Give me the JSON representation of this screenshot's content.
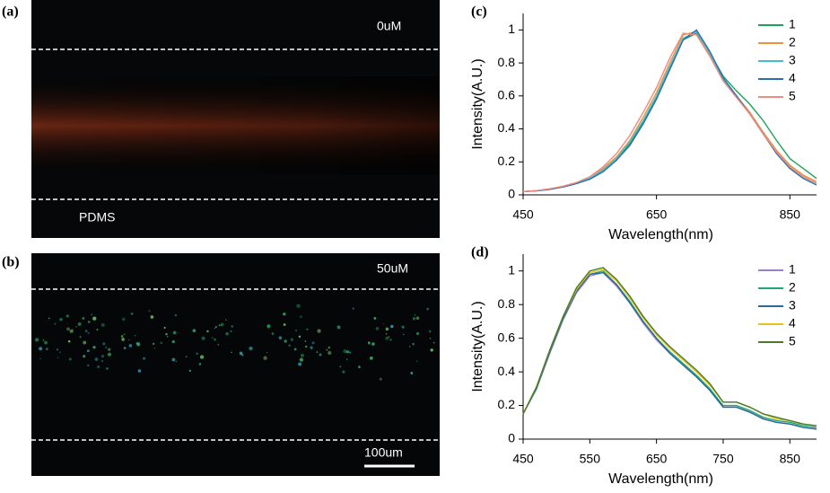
{
  "images": [
    {
      "panel": "(a)",
      "concentration": "0uM",
      "material": "PDMS"
    },
    {
      "panel": "(b)",
      "concentration": "50uM",
      "scale_bar": "100um"
    }
  ],
  "chart_data": [
    {
      "type": "line",
      "panel": "(c)",
      "x_label": "Wavelength(nm)",
      "y_label": "Intensity(A.U.)",
      "x": [
        450,
        470,
        490,
        510,
        530,
        550,
        570,
        590,
        610,
        630,
        650,
        670,
        690,
        710,
        730,
        750,
        770,
        790,
        810,
        830,
        850,
        870,
        890
      ],
      "xlim": [
        450,
        890
      ],
      "xticks": [
        450,
        650,
        850
      ],
      "ylim": [
        0,
        1.1
      ],
      "yticks": [
        0,
        0.2,
        0.4,
        0.6,
        0.8,
        1
      ],
      "series": [
        {
          "name": "1",
          "color": "#1aa35a",
          "values": [
            0.02,
            0.025,
            0.035,
            0.05,
            0.07,
            0.1,
            0.15,
            0.21,
            0.31,
            0.44,
            0.59,
            0.77,
            0.94,
            0.98,
            0.86,
            0.72,
            0.63,
            0.55,
            0.45,
            0.33,
            0.22,
            0.16,
            0.1
          ]
        },
        {
          "name": "2",
          "color": "#f0903a",
          "values": [
            0.02,
            0.025,
            0.035,
            0.05,
            0.07,
            0.1,
            0.16,
            0.23,
            0.33,
            0.47,
            0.62,
            0.8,
            0.97,
            0.99,
            0.85,
            0.7,
            0.6,
            0.5,
            0.38,
            0.27,
            0.18,
            0.12,
            0.08
          ]
        },
        {
          "name": "3",
          "color": "#3fbfcf",
          "values": [
            0.02,
            0.025,
            0.035,
            0.05,
            0.07,
            0.1,
            0.15,
            0.22,
            0.32,
            0.45,
            0.6,
            0.78,
            0.95,
            0.99,
            0.86,
            0.7,
            0.6,
            0.49,
            0.37,
            0.26,
            0.17,
            0.11,
            0.07
          ]
        },
        {
          "name": "4",
          "color": "#2e6fb0",
          "values": [
            0.02,
            0.024,
            0.033,
            0.048,
            0.068,
            0.095,
            0.14,
            0.21,
            0.3,
            0.43,
            0.58,
            0.76,
            0.94,
            1.0,
            0.87,
            0.71,
            0.6,
            0.49,
            0.37,
            0.25,
            0.16,
            0.1,
            0.06
          ]
        },
        {
          "name": "5",
          "color": "#f08a80",
          "values": [
            0.02,
            0.026,
            0.037,
            0.053,
            0.075,
            0.11,
            0.17,
            0.25,
            0.36,
            0.5,
            0.65,
            0.83,
            0.98,
            0.97,
            0.84,
            0.69,
            0.59,
            0.49,
            0.37,
            0.26,
            0.17,
            0.11,
            0.07
          ]
        }
      ]
    },
    {
      "type": "line",
      "panel": "(d)",
      "x_label": "Wavelength(nm)",
      "y_label": "Intensity(A.U.)",
      "x": [
        450,
        470,
        490,
        510,
        530,
        550,
        570,
        590,
        610,
        630,
        650,
        670,
        690,
        710,
        730,
        750,
        770,
        790,
        810,
        830,
        850,
        870,
        890
      ],
      "xlim": [
        450,
        890
      ],
      "xticks": [
        450,
        550,
        650,
        750,
        850
      ],
      "ylim": [
        0,
        1.1
      ],
      "yticks": [
        0,
        0.2,
        0.4,
        0.6,
        0.8,
        1
      ],
      "series": [
        {
          "name": "1",
          "color": "#9b7fc8",
          "values": [
            0.15,
            0.3,
            0.51,
            0.71,
            0.87,
            0.97,
            0.99,
            0.91,
            0.81,
            0.69,
            0.59,
            0.51,
            0.44,
            0.37,
            0.29,
            0.19,
            0.19,
            0.16,
            0.12,
            0.1,
            0.09,
            0.07,
            0.06
          ]
        },
        {
          "name": "2",
          "color": "#20a878",
          "values": [
            0.15,
            0.3,
            0.52,
            0.72,
            0.88,
            0.98,
            1.0,
            0.92,
            0.82,
            0.7,
            0.6,
            0.52,
            0.45,
            0.38,
            0.3,
            0.2,
            0.2,
            0.17,
            0.13,
            0.11,
            0.1,
            0.08,
            0.07
          ]
        },
        {
          "name": "3",
          "color": "#2a6a9a",
          "values": [
            0.15,
            0.3,
            0.52,
            0.72,
            0.88,
            0.98,
            0.99,
            0.92,
            0.81,
            0.7,
            0.6,
            0.51,
            0.44,
            0.37,
            0.29,
            0.19,
            0.19,
            0.16,
            0.12,
            0.1,
            0.09,
            0.07,
            0.06
          ]
        },
        {
          "name": "4",
          "color": "#e8c21a",
          "values": [
            0.15,
            0.31,
            0.53,
            0.73,
            0.89,
            0.99,
            1.01,
            0.94,
            0.84,
            0.72,
            0.62,
            0.54,
            0.47,
            0.4,
            0.32,
            0.22,
            0.22,
            0.19,
            0.15,
            0.12,
            0.11,
            0.09,
            0.08
          ]
        },
        {
          "name": "5",
          "color": "#4a7a2a",
          "values": [
            0.15,
            0.31,
            0.53,
            0.73,
            0.9,
            1.0,
            1.02,
            0.95,
            0.85,
            0.73,
            0.63,
            0.55,
            0.48,
            0.41,
            0.33,
            0.22,
            0.22,
            0.19,
            0.15,
            0.13,
            0.11,
            0.09,
            0.08
          ]
        }
      ]
    }
  ]
}
